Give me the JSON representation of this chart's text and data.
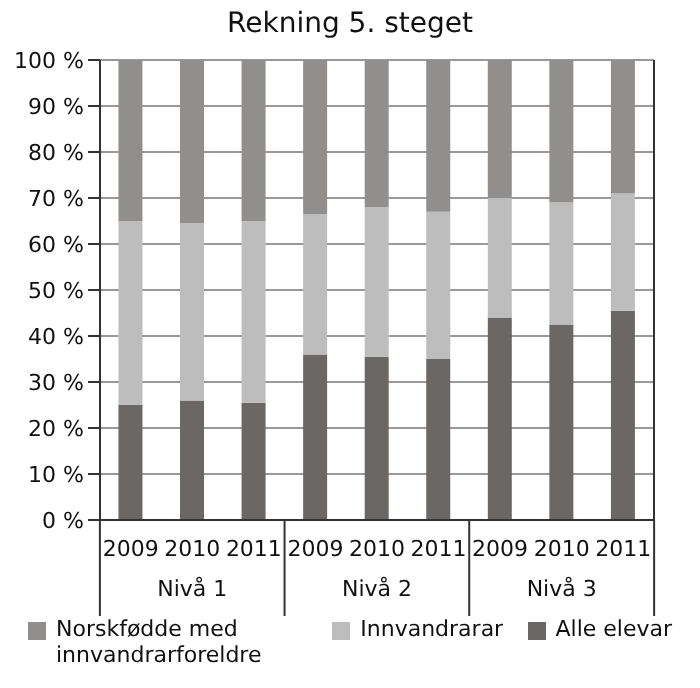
{
  "chart_data": {
    "type": "bar",
    "title": "Rekning 5. steget",
    "stacked": true,
    "categories": [
      "2009",
      "2010",
      "2011",
      "2009",
      "2010",
      "2011",
      "2009",
      "2010",
      "2011"
    ],
    "annotations": [
      "Nivå 1",
      "Nivå 2",
      "Nivå 3"
    ],
    "series": [
      {
        "name": "Alle elevar",
        "color": "#6b6764",
        "values": [
          25,
          26,
          25.5,
          36,
          35.5,
          35,
          44,
          42.5,
          45.5
        ]
      },
      {
        "name": "Innvandrarar",
        "color": "#bdbdbd",
        "values": [
          40,
          38.5,
          39.5,
          30.5,
          32.5,
          32,
          26,
          26.5,
          25.5
        ]
      },
      {
        "name": "Norskfødde med innvandrarforeldre",
        "color": "#918f8e",
        "values": [
          35,
          35.5,
          35,
          33.5,
          32,
          33,
          30,
          31,
          29
        ]
      }
    ],
    "ylim": [
      0,
      100
    ],
    "yticks": [
      {
        "value": 0,
        "label": "0 %"
      },
      {
        "value": 10,
        "label": "10 %"
      },
      {
        "value": 20,
        "label": "20 %"
      },
      {
        "value": 30,
        "label": "30 %"
      },
      {
        "value": 40,
        "label": "40 %"
      },
      {
        "value": 50,
        "label": "50 %"
      },
      {
        "value": 60,
        "label": "60 %"
      },
      {
        "value": 70,
        "label": "70 %"
      },
      {
        "value": 80,
        "label": "80 %"
      },
      {
        "value": 90,
        "label": "90 %"
      },
      {
        "value": 100,
        "label": "100 %"
      }
    ],
    "grid": "y",
    "legend": "bottom"
  }
}
